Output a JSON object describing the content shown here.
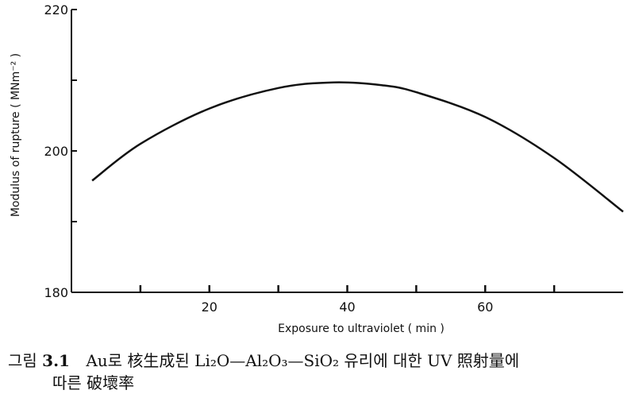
{
  "chart_data": {
    "type": "line",
    "xlabel": "Exposure to ultraviolet ( min )",
    "ylabel": "Modulus of rupture ( MNm⁻² )",
    "xlim": [
      0,
      80
    ],
    "ylim": [
      180,
      220
    ],
    "x_ticks": [
      10,
      20,
      30,
      40,
      50,
      60,
      70
    ],
    "x_tick_labels": [
      "",
      "20",
      "",
      "40",
      "",
      "60",
      ""
    ],
    "y_ticks": [
      180,
      190,
      200,
      210,
      220
    ],
    "y_tick_labels": [
      "180",
      "",
      "200",
      "",
      "220"
    ],
    "grid": false,
    "legend": "none",
    "series": [
      {
        "x": [
          3,
          10,
          20,
          30,
          38,
          45,
          50,
          60,
          70,
          80
        ],
        "y": [
          195.8,
          201.0,
          206.0,
          208.9,
          209.7,
          209.3,
          208.3,
          204.8,
          199.0,
          191.4
        ]
      }
    ],
    "line_color": "#111111"
  },
  "caption": {
    "label": "그림",
    "number": "3.1",
    "text": "Au로 核生成된 Li₂O—Al₂O₃—SiO₂ 유리에 대한 UV 照射量에",
    "text_cont": "따른 破壞率"
  }
}
